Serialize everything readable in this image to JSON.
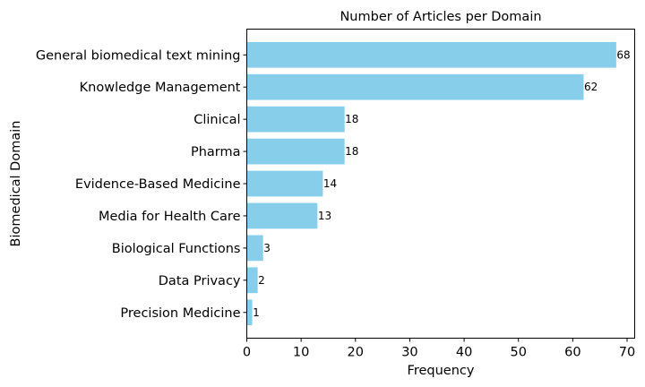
{
  "chart_data": {
    "type": "bar",
    "orientation": "horizontal",
    "title": "Number of Articles per Domain",
    "xlabel": "Frequency",
    "ylabel": "Biomedical Domain",
    "categories": [
      "General biomedical text mining",
      "Knowledge Management",
      "Clinical",
      "Pharma",
      "Evidence-Based Medicine",
      "Media for Health Care",
      "Biological Functions",
      "Data Privacy",
      "Precision Medicine"
    ],
    "values": [
      68,
      62,
      18,
      18,
      14,
      13,
      3,
      2,
      1
    ],
    "xlim": [
      0,
      71.4
    ],
    "xticks": [
      0,
      10,
      20,
      30,
      40,
      50,
      60,
      70
    ],
    "bar_color": "#87ceeb",
    "grid": false,
    "legend": "none"
  }
}
